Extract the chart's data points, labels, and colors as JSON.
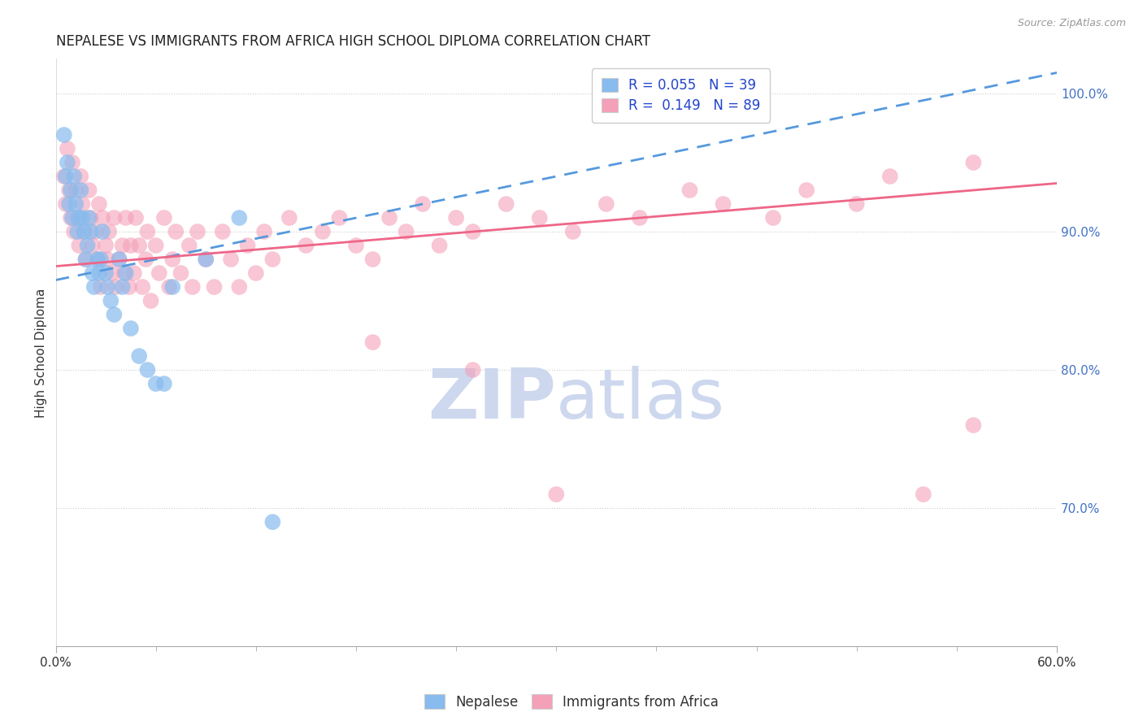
{
  "title": "NEPALESE VS IMMIGRANTS FROM AFRICA HIGH SCHOOL DIPLOMA CORRELATION CHART",
  "source": "Source: ZipAtlas.com",
  "ylabel": "High School Diploma",
  "legend_labels": [
    "Nepalese",
    "Immigrants from Africa"
  ],
  "R_nepalese": 0.055,
  "N_nepalese": 39,
  "R_africa": 0.149,
  "N_africa": 89,
  "x_min": 0.0,
  "x_max": 0.6,
  "y_min": 0.6,
  "y_max": 1.025,
  "yticks": [
    0.7,
    0.8,
    0.9,
    1.0
  ],
  "ytick_labels": [
    "70.0%",
    "80.0%",
    "90.0%",
    "100.0%"
  ],
  "color_nepalese": "#88BBEE",
  "color_africa": "#F4A0B8",
  "color_nepalese_line": "#5599DD",
  "color_africa_line": "#EE6688",
  "watermark_text": "ZIPatlas",
  "watermark_color": "#CDD8EE",
  "nepalese_x": [
    0.005,
    0.006,
    0.007,
    0.008,
    0.009,
    0.01,
    0.011,
    0.012,
    0.013,
    0.014,
    0.015,
    0.016,
    0.017,
    0.018,
    0.019,
    0.02,
    0.021,
    0.022,
    0.023,
    0.025,
    0.026,
    0.027,
    0.028,
    0.03,
    0.031,
    0.033,
    0.035,
    0.038,
    0.04,
    0.042,
    0.045,
    0.05,
    0.055,
    0.06,
    0.065,
    0.07,
    0.09,
    0.11,
    0.13
  ],
  "nepalese_y": [
    0.97,
    0.94,
    0.95,
    0.92,
    0.93,
    0.91,
    0.94,
    0.92,
    0.9,
    0.91,
    0.93,
    0.91,
    0.9,
    0.88,
    0.89,
    0.91,
    0.9,
    0.87,
    0.86,
    0.88,
    0.87,
    0.88,
    0.9,
    0.87,
    0.86,
    0.85,
    0.84,
    0.88,
    0.86,
    0.87,
    0.83,
    0.81,
    0.8,
    0.79,
    0.79,
    0.86,
    0.88,
    0.91,
    0.69
  ],
  "africa_x": [
    0.005,
    0.006,
    0.007,
    0.008,
    0.009,
    0.01,
    0.011,
    0.012,
    0.013,
    0.014,
    0.015,
    0.016,
    0.017,
    0.018,
    0.02,
    0.021,
    0.022,
    0.024,
    0.025,
    0.026,
    0.027,
    0.028,
    0.03,
    0.031,
    0.032,
    0.034,
    0.035,
    0.036,
    0.038,
    0.04,
    0.041,
    0.042,
    0.044,
    0.045,
    0.047,
    0.048,
    0.05,
    0.052,
    0.054,
    0.055,
    0.057,
    0.06,
    0.062,
    0.065,
    0.068,
    0.07,
    0.072,
    0.075,
    0.08,
    0.082,
    0.085,
    0.09,
    0.095,
    0.1,
    0.105,
    0.11,
    0.115,
    0.12,
    0.125,
    0.13,
    0.14,
    0.15,
    0.16,
    0.17,
    0.18,
    0.19,
    0.2,
    0.21,
    0.22,
    0.23,
    0.24,
    0.25,
    0.27,
    0.29,
    0.31,
    0.33,
    0.35,
    0.38,
    0.4,
    0.43,
    0.45,
    0.48,
    0.5,
    0.52,
    0.55,
    0.19,
    0.25,
    0.3,
    0.55
  ],
  "africa_y": [
    0.94,
    0.92,
    0.96,
    0.93,
    0.91,
    0.95,
    0.9,
    0.93,
    0.91,
    0.89,
    0.94,
    0.92,
    0.9,
    0.88,
    0.93,
    0.91,
    0.89,
    0.9,
    0.88,
    0.92,
    0.86,
    0.91,
    0.89,
    0.88,
    0.9,
    0.87,
    0.91,
    0.86,
    0.88,
    0.89,
    0.87,
    0.91,
    0.86,
    0.89,
    0.87,
    0.91,
    0.89,
    0.86,
    0.88,
    0.9,
    0.85,
    0.89,
    0.87,
    0.91,
    0.86,
    0.88,
    0.9,
    0.87,
    0.89,
    0.86,
    0.9,
    0.88,
    0.86,
    0.9,
    0.88,
    0.86,
    0.89,
    0.87,
    0.9,
    0.88,
    0.91,
    0.89,
    0.9,
    0.91,
    0.89,
    0.88,
    0.91,
    0.9,
    0.92,
    0.89,
    0.91,
    0.9,
    0.92,
    0.91,
    0.9,
    0.92,
    0.91,
    0.93,
    0.92,
    0.91,
    0.93,
    0.92,
    0.94,
    0.71,
    0.95,
    0.82,
    0.8,
    0.71,
    0.76
  ]
}
